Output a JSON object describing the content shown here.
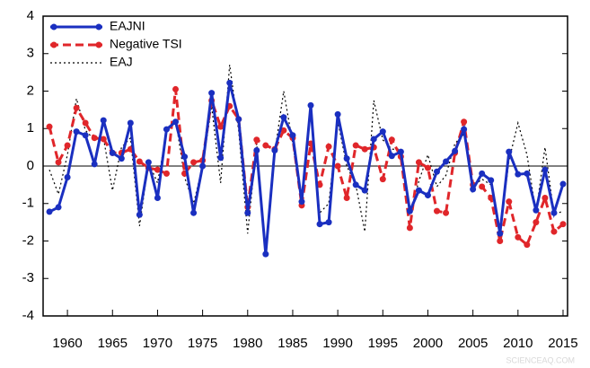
{
  "chart_data": {
    "type": "line",
    "x": [
      1958,
      1959,
      1960,
      1961,
      1962,
      1963,
      1964,
      1965,
      1966,
      1967,
      1968,
      1969,
      1970,
      1971,
      1972,
      1973,
      1974,
      1975,
      1976,
      1977,
      1978,
      1979,
      1980,
      1981,
      1982,
      1983,
      1984,
      1985,
      1986,
      1987,
      1988,
      1989,
      1990,
      1991,
      1992,
      1993,
      1994,
      1995,
      1996,
      1997,
      1998,
      1999,
      2000,
      2001,
      2002,
      2003,
      2004,
      2005,
      2006,
      2007,
      2008,
      2009,
      2010,
      2011,
      2012,
      2013,
      2014,
      2015
    ],
    "series": [
      {
        "name": "EAJNI",
        "color": "#1a2fc0",
        "line_style": "solid",
        "marker": true,
        "values": [
          -1.22,
          -1.1,
          -0.3,
          0.92,
          0.82,
          0.05,
          1.22,
          0.35,
          0.2,
          1.15,
          -1.3,
          0.1,
          -0.85,
          0.98,
          1.18,
          0.25,
          -1.25,
          0.0,
          1.95,
          0.22,
          2.22,
          1.25,
          -1.25,
          0.42,
          -2.35,
          0.42,
          1.3,
          0.82,
          -0.95,
          1.62,
          -1.55,
          -1.5,
          1.38,
          0.2,
          -0.5,
          -0.65,
          0.72,
          0.92,
          0.27,
          0.38,
          -1.2,
          -0.65,
          -0.78,
          -0.15,
          0.12,
          0.4,
          0.98,
          -0.62,
          -0.2,
          -0.38,
          -1.8,
          0.38,
          -0.22,
          -0.2,
          -1.18,
          -0.1,
          -1.25,
          -0.48
        ]
      },
      {
        "name": "Negative TSI",
        "color": "#e0262a",
        "line_style": "dashed",
        "marker": true,
        "values": [
          1.05,
          0.1,
          0.55,
          1.55,
          1.15,
          0.75,
          0.72,
          0.35,
          0.35,
          0.45,
          0.12,
          -0.05,
          -0.1,
          -0.2,
          2.05,
          -0.2,
          0.1,
          0.15,
          1.75,
          1.05,
          1.6,
          1.25,
          -1.1,
          0.7,
          0.55,
          0.45,
          0.95,
          0.75,
          -1.05,
          0.6,
          -0.5,
          0.52,
          0.0,
          -0.85,
          0.55,
          0.45,
          0.5,
          -0.35,
          0.7,
          0.25,
          -1.65,
          0.1,
          -0.05,
          -1.2,
          -1.25,
          0.35,
          1.18,
          -0.5,
          -0.55,
          -0.85,
          -2.0,
          -0.95,
          -1.9,
          -2.1,
          -1.5,
          -0.85,
          -1.75,
          -1.55
        ]
      },
      {
        "name": "EAJ",
        "color": "#000000",
        "line_style": "dotted",
        "marker": false,
        "values": [
          -0.1,
          -0.75,
          0.3,
          1.8,
          0.95,
          0.7,
          0.75,
          -0.65,
          0.5,
          0.75,
          -1.6,
          0.1,
          -0.45,
          0.9,
          1.25,
          -0.3,
          -1.0,
          0.0,
          1.6,
          -0.45,
          2.7,
          0.95,
          -1.8,
          0.6,
          -2.25,
          0.35,
          2.0,
          0.6,
          -0.95,
          1.4,
          -1.25,
          -1.0,
          1.2,
          0.0,
          -0.5,
          -1.75,
          1.75,
          0.7,
          0.45,
          0.45,
          -1.3,
          -0.4,
          0.3,
          -0.55,
          -0.25,
          0.6,
          0.85,
          -0.55,
          -0.35,
          -0.5,
          -1.8,
          0.15,
          1.15,
          0.3,
          -1.25,
          0.5,
          -1.3,
          -1.2
        ]
      }
    ],
    "xlim": [
      1957.3,
      2015.5
    ],
    "xticks": [
      1960,
      1965,
      1970,
      1975,
      1980,
      1985,
      1990,
      1995,
      2000,
      2005,
      2010,
      2015
    ],
    "ylim": [
      -4,
      4
    ],
    "yticks": [
      -4,
      -3,
      -2,
      -1,
      0,
      1,
      2,
      3,
      4
    ],
    "zero_line": true,
    "legend": "upper-left",
    "watermark": "SCIENCEAQ.COM"
  }
}
